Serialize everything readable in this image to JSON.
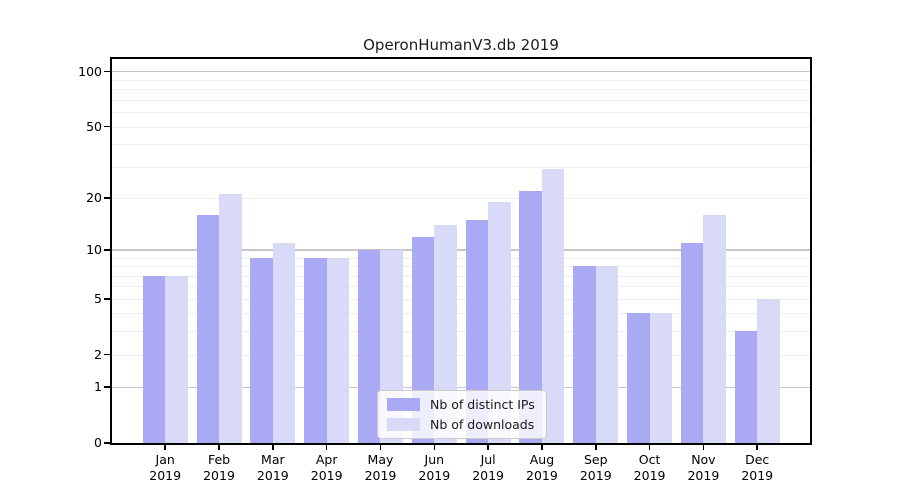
{
  "chart_data": {
    "type": "bar",
    "title": "OperonHumanV3.db 2019",
    "categories": [
      "Jan",
      "Feb",
      "Mar",
      "Apr",
      "May",
      "Jun",
      "Jul",
      "Aug",
      "Sep",
      "Oct",
      "Nov",
      "Dec"
    ],
    "x_tick_second_line": "2019",
    "series": [
      {
        "key": "distinct-ips",
        "name": "Nb of distinct IPs",
        "color": "#a9a9f4",
        "values": [
          7,
          16,
          9,
          9,
          10,
          12,
          15,
          22,
          8,
          4,
          11,
          3
        ]
      },
      {
        "key": "downloads",
        "name": "Nb of downloads",
        "color": "#d9d9f8",
        "values": [
          7,
          21,
          11,
          9,
          10,
          14,
          19,
          29,
          8,
          4,
          16,
          5
        ]
      }
    ],
    "yscale": "log1p",
    "ylim": [
      0,
      117
    ],
    "yticks": [
      100,
      50,
      20,
      10,
      5,
      2,
      1,
      0
    ],
    "major_gridlines": [
      1,
      10,
      100
    ],
    "minor_gridlines": [
      2,
      3,
      4,
      5,
      6,
      7,
      8,
      9,
      20,
      30,
      40,
      50,
      60,
      70,
      80,
      90
    ],
    "grid": "horizontal",
    "legend_position": "lower-center-inside"
  }
}
